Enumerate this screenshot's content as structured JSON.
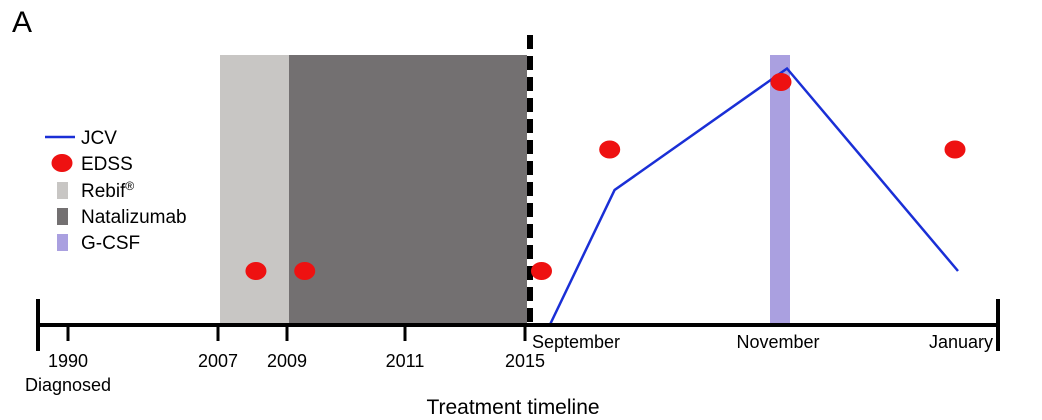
{
  "panel_label": "A",
  "chart_data": {
    "type": "line",
    "title": "",
    "xlabel": "Treatment timeline",
    "ylabel": "",
    "x_ticks": [
      {
        "label": "1990",
        "sublabel": "Diagnosed"
      },
      {
        "label": "2007"
      },
      {
        "label": "2009"
      },
      {
        "label": "2011"
      },
      {
        "label": "2015"
      },
      {
        "label": "September"
      },
      {
        "label": "November"
      },
      {
        "label": "January"
      }
    ],
    "axis_break_after": "2015",
    "treatment_periods": [
      {
        "name": "Rebif®",
        "start": "2007",
        "end": "2009",
        "color": "#c8c6c4"
      },
      {
        "name": "Natalizumab",
        "start": "2009",
        "end": "2015",
        "color": "#737071"
      },
      {
        "name": "G-CSF",
        "at": "November",
        "color": "#aaa0e0"
      }
    ],
    "series": [
      {
        "name": "JCV",
        "kind": "line",
        "color": "#1a2fd6",
        "points": [
          {
            "x": 10.45,
            "y": 0.0
          },
          {
            "x": 11.35,
            "y": 0.5
          },
          {
            "x": 13.15,
            "y": 0.95
          },
          {
            "x": 16.0,
            "y": 0.2
          }
        ]
      },
      {
        "name": "EDSS",
        "kind": "scatter",
        "color": "#ee1111",
        "points": [
          {
            "x": 4.55,
            "y": 0.2
          },
          {
            "x": 5.3,
            "y": 0.2
          },
          {
            "x": 10.3,
            "y": 0.2
          },
          {
            "x": 11.3,
            "y": 0.65
          },
          {
            "x": 13.05,
            "y": 0.9
          },
          {
            "x": 15.95,
            "y": 0.65
          }
        ]
      }
    ],
    "legend": [
      {
        "label": "JCV",
        "swatch": "line",
        "color": "#1a2fd6"
      },
      {
        "label": "EDSS",
        "swatch": "dot",
        "color": "#ee1111"
      },
      {
        "label": "Rebif",
        "suffix": "®",
        "swatch": "bar",
        "color": "#c8c6c4"
      },
      {
        "label": "Natalizumab",
        "swatch": "bar",
        "color": "#737071"
      },
      {
        "label": "G-CSF",
        "swatch": "bar",
        "color": "#aaa0e0"
      }
    ],
    "legend_position": "left",
    "grid": false
  }
}
